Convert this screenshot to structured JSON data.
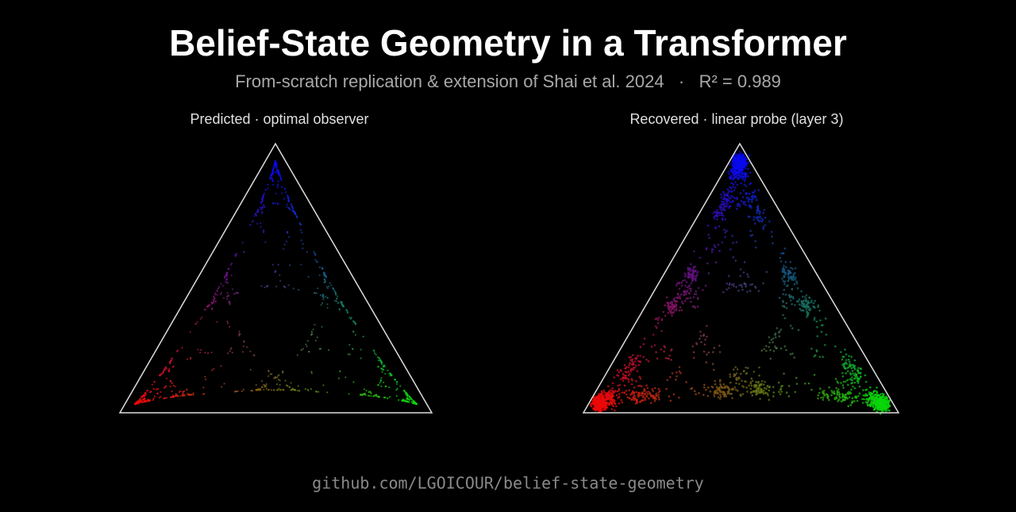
{
  "header": {
    "title": "Belief-State Geometry in a Transformer",
    "subtitle": "From-scratch replication & extension of Shai et al. 2024   ·   R² = 0.989"
  },
  "panels": [
    {
      "title": "Predicted · optimal observer"
    },
    {
      "title": "Recovered · linear probe (layer 3)"
    }
  ],
  "footer": {
    "link": "github.com/LGOICOUR/belief-state-geometry"
  }
}
